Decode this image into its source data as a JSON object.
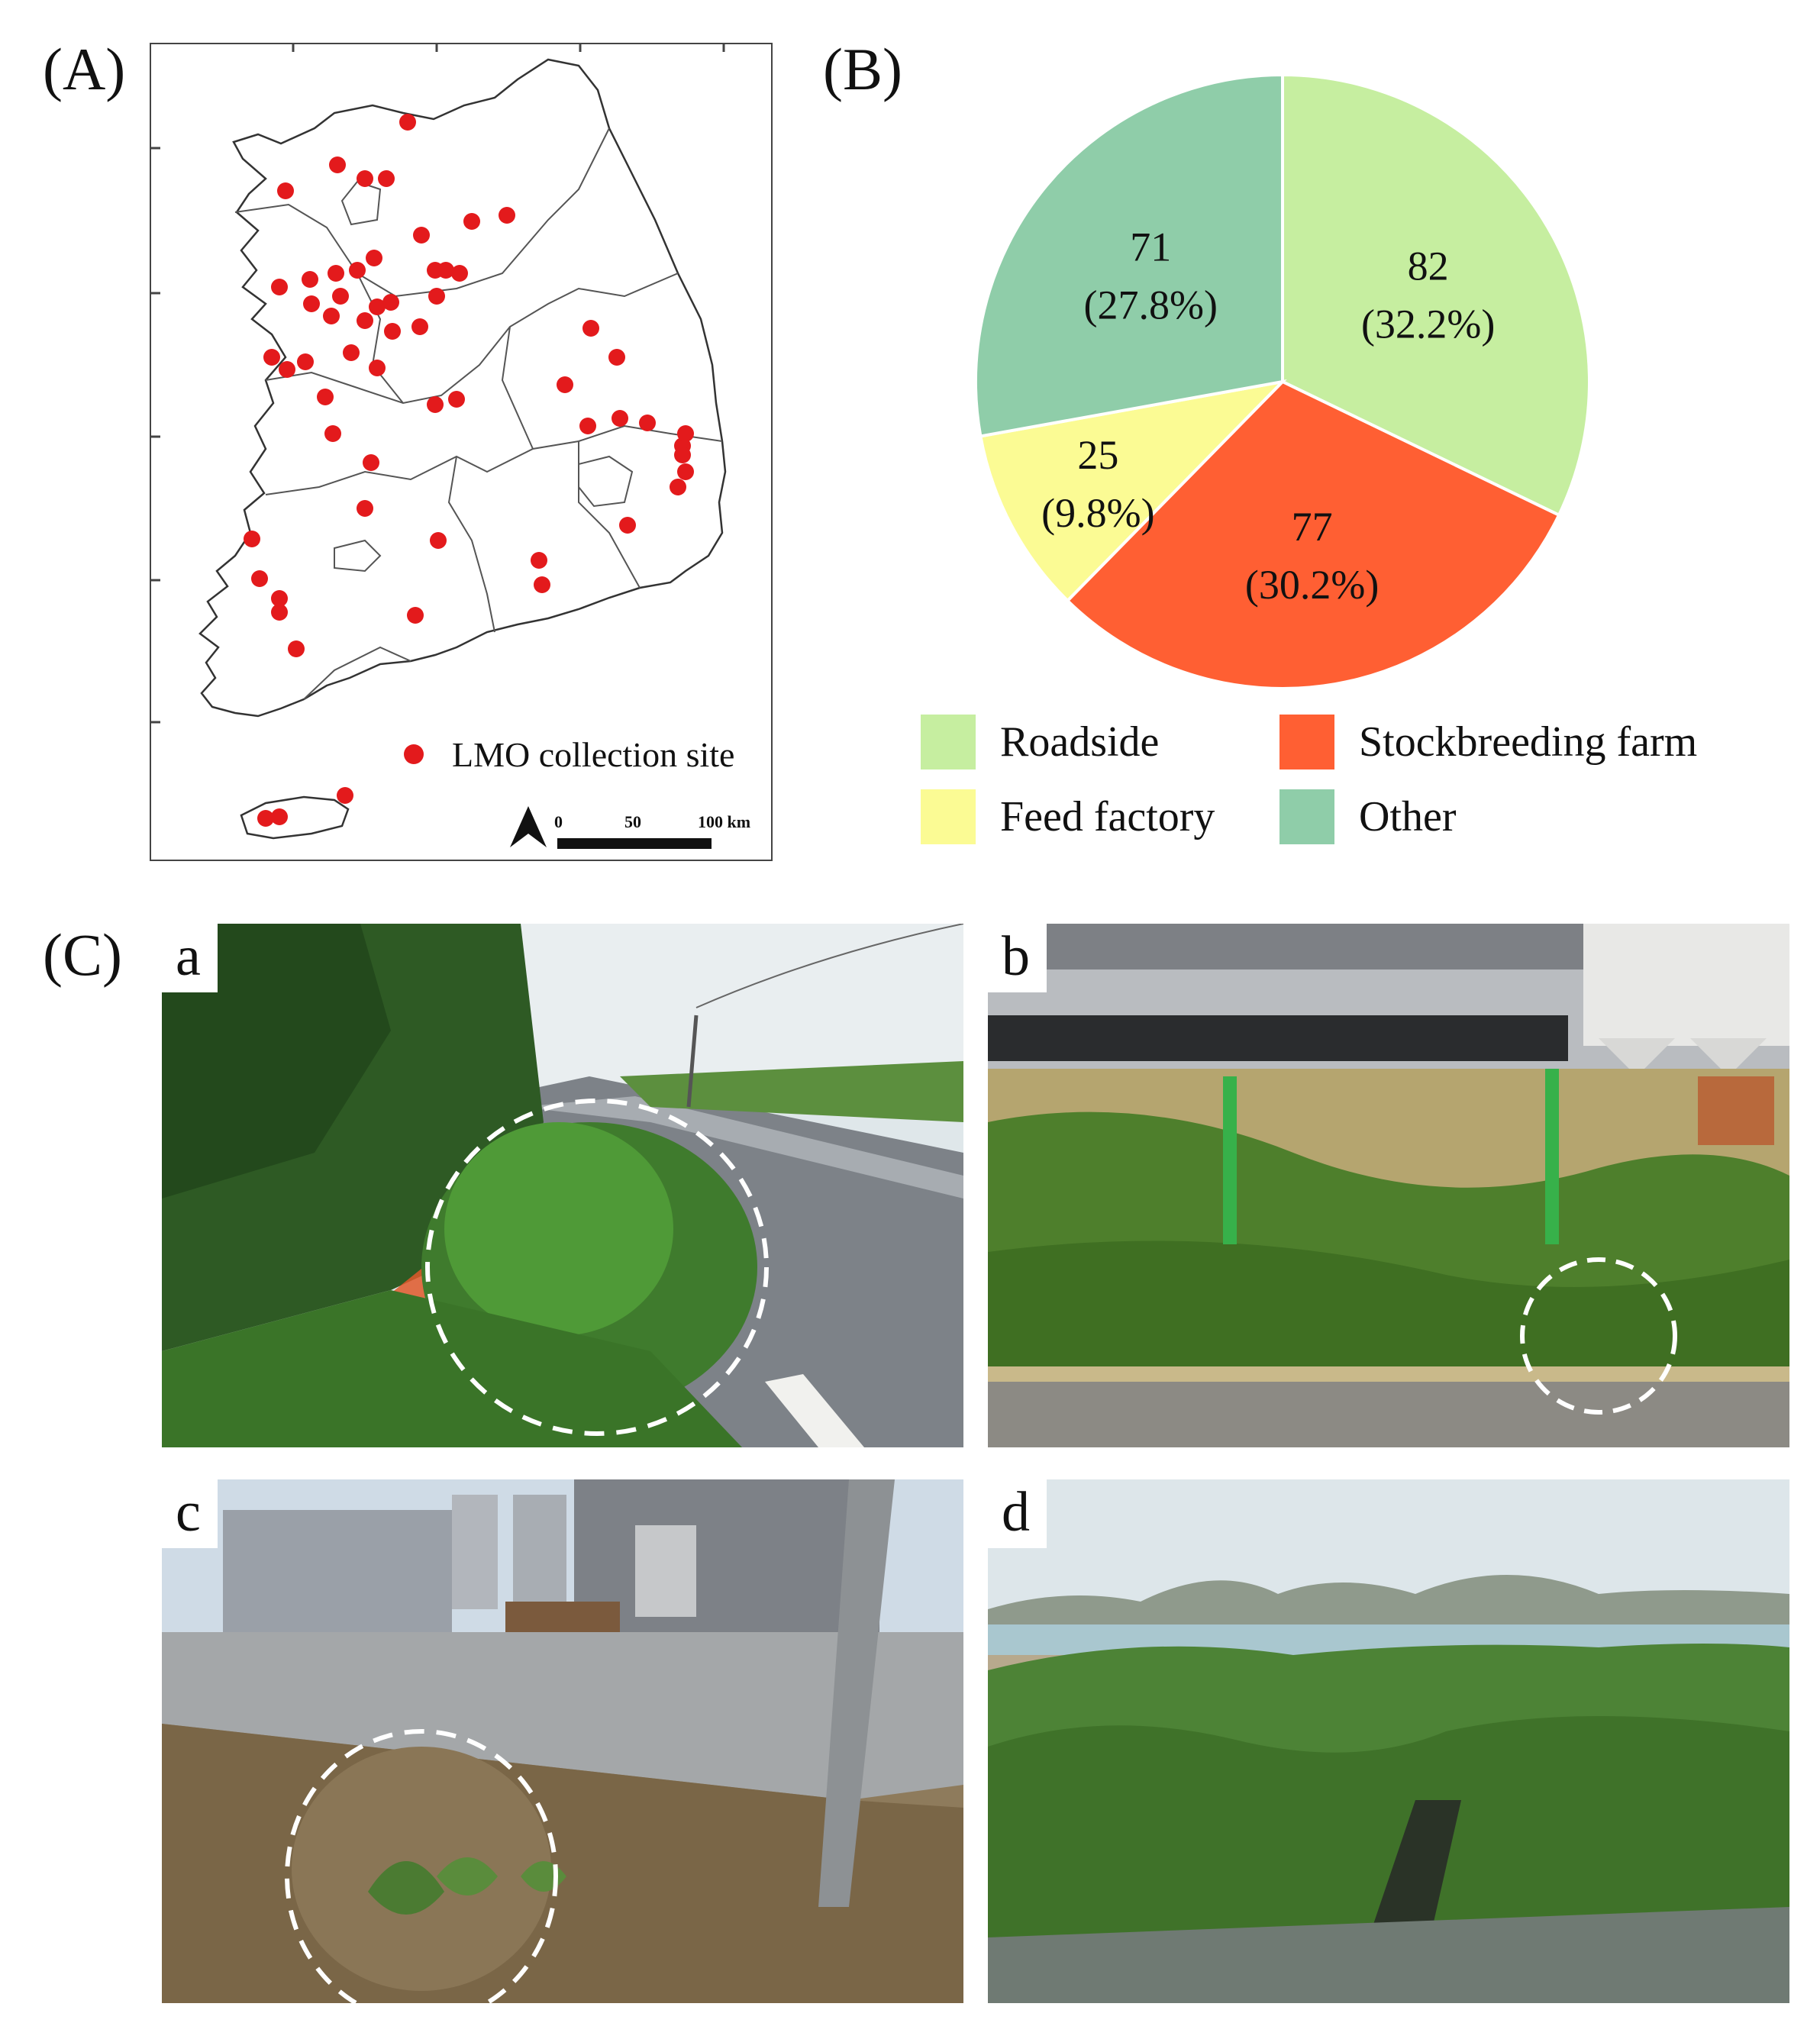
{
  "panels": {
    "a": "(A)",
    "b": "(B)",
    "c": "(C)"
  },
  "map": {
    "legend_label": "LMO collection site",
    "scale_ticks": [
      "0",
      "50",
      "100 km"
    ],
    "marker_color": "#e31a1c"
  },
  "chart_data": {
    "type": "pie",
    "slices": [
      {
        "name": "Roadside",
        "value": 82,
        "percent": "32.2%",
        "color": "#c6eea0"
      },
      {
        "name": "Stockbreeding farm",
        "value": 77,
        "percent": "30.2%",
        "color": "#ff5f33"
      },
      {
        "name": "Feed factory",
        "value": 25,
        "percent": "9.8%",
        "color": "#fbfb94"
      },
      {
        "name": "Other",
        "value": 71,
        "percent": "27.8%",
        "color": "#8fcda9"
      }
    ],
    "legend_placement": "bottom"
  },
  "photos": [
    {
      "letter": "a",
      "scene": "roadside-icon"
    },
    {
      "letter": "b",
      "scene": "farm-icon"
    },
    {
      "letter": "c",
      "scene": "factory-icon"
    },
    {
      "letter": "d",
      "scene": "field-icon"
    }
  ]
}
